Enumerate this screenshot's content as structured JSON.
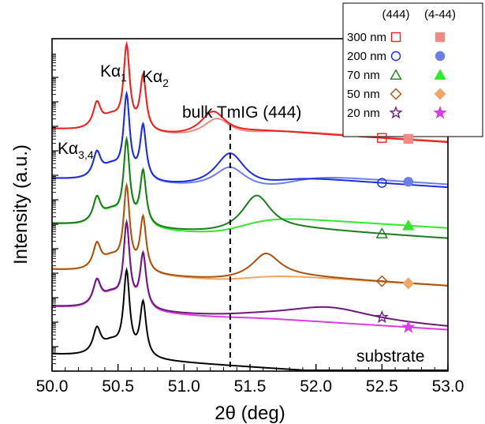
{
  "chart_data": {
    "type": "line",
    "title": "",
    "xlabel": "2θ (deg)",
    "ylabel": "Intensity (a.u.)",
    "xlim": [
      50.0,
      53.0
    ],
    "x_ticks": [
      "50.0",
      "50.5",
      "51.0",
      "51.5",
      "52.0",
      "52.5",
      "53.0"
    ],
    "y_scale": "log",
    "y_tick_labels": false,
    "grid": false,
    "legend_position": "top-right",
    "legend_headers": [
      "(444)",
      "(4-44)"
    ],
    "annotations": {
      "ka34_main": "Kα",
      "ka34_sub": "3,4",
      "ka1_main": "Kα",
      "ka1_sub": "1",
      "ka2_main": "Kα",
      "ka2_sub": "2",
      "bulk": "bulk TmIG (444)",
      "bulk_position_x": 51.35,
      "substrate": "substrate"
    },
    "series": [
      {
        "name": "300 nm",
        "color": "#e8231f",
        "color_light": "#f08a86",
        "marker": "square",
        "offset": 0,
        "peak_444": {
          "center": 51.22,
          "amplitude": 0.34,
          "width": 0.12
        },
        "peak_4m44": {
          "center": 51.25,
          "amplitude": 0.26,
          "width": 0.13
        },
        "shoulder_444": [
          51.4,
          0.16
        ],
        "shoulder_4m44": [
          51.5,
          0.17
        ],
        "marker_x_444": 52.5,
        "marker_x_4m44": 52.7
      },
      {
        "name": "200 nm",
        "color": "#1c2fd6",
        "color_light": "#6d7ee6",
        "marker": "circle",
        "offset": 1,
        "peak_444": {
          "center": 51.35,
          "amplitude": 0.48,
          "width": 0.14
        },
        "peak_4m44": {
          "center": 51.35,
          "amplitude": 0.3,
          "width": 0.15
        },
        "shoulder_444": [
          51.7,
          0.22
        ],
        "shoulder_4m44": [
          51.8,
          0.26
        ],
        "marker_x_444": 52.5,
        "marker_x_4m44": 52.7
      },
      {
        "name": "70 nm",
        "color": "#1f7a1f",
        "color_light": "#35e62f",
        "marker": "triangle",
        "offset": 2,
        "peak_444": {
          "center": 51.55,
          "amplitude": 0.52,
          "width": 0.14
        },
        "peak_4m44": null,
        "shoulder_444": [
          51.7,
          0.14
        ],
        "shoulder_4m44": [
          51.45,
          0.28
        ],
        "marker_x_444": 52.5,
        "marker_x_4m44": 52.7
      },
      {
        "name": "50 nm",
        "color": "#a8530f",
        "color_light": "#f0a664",
        "marker": "diamond",
        "offset": 3,
        "peak_444": {
          "center": 51.62,
          "amplitude": 0.32,
          "width": 0.13
        },
        "peak_4m44": null,
        "shoulder_444": [
          51.55,
          0.12
        ],
        "shoulder_4m44": [
          51.5,
          0.12
        ],
        "marker_x_444": 52.5,
        "marker_x_4m44": 52.7
      },
      {
        "name": "20 nm",
        "color": "#6b1a7a",
        "color_light": "#d63fe0",
        "marker": "star",
        "offset": 4,
        "peak_444": {
          "center": 52.1,
          "amplitude": 0.18,
          "width": 0.4
        },
        "peak_4m44": null,
        "shoulder_444": [
          51.4,
          0.05
        ],
        "shoulder_4m44": [
          51.4,
          0.03
        ],
        "marker_x_444": 52.5,
        "marker_x_4m44": 52.7
      },
      {
        "name": "substrate",
        "color": "#000000",
        "offset": 5
      }
    ]
  }
}
